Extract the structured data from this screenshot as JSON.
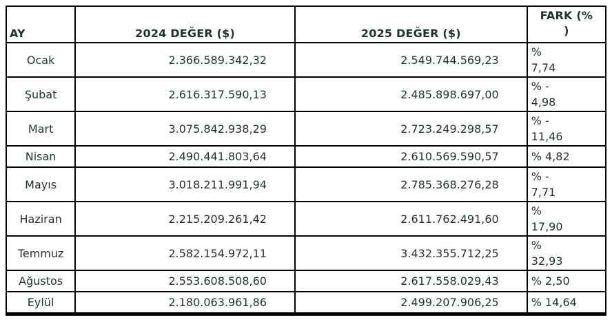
{
  "table": {
    "columns": [
      {
        "label": "AY"
      },
      {
        "label": "2024 DEĞER ($)"
      },
      {
        "label": "2025 DEĞER ($)"
      },
      {
        "label": "FARK (%\n)"
      }
    ],
    "rows": [
      {
        "month": "Ocak",
        "value_2024": "2.366.589.342,32",
        "value_2025": "2.549.744.569,23",
        "fark": "%\n7,74"
      },
      {
        "month": "Şubat",
        "value_2024": "2.616.317.590,13",
        "value_2025": "2.485.898.697,00",
        "fark": "% -\n4,98"
      },
      {
        "month": "Mart",
        "value_2024": "3.075.842.938,29",
        "value_2025": "2.723.249.298,57",
        "fark": "% -\n11,46"
      },
      {
        "month": "Nisan",
        "value_2024": "2.490.441.803,64",
        "value_2025": "2.610.569.590,57",
        "fark": "% 4,82"
      },
      {
        "month": "Mayıs",
        "value_2024": "3.018.211.991,94",
        "value_2025": "2.785.368.276,28",
        "fark": "% -\n7,71"
      },
      {
        "month": "Haziran",
        "value_2024": "2.215.209.261,42",
        "value_2025": "2.611.762.491,60",
        "fark": "%\n17,90"
      },
      {
        "month": "Temmuz",
        "value_2024": "2.582.154.972,11",
        "value_2025": "3.432.355.712,25",
        "fark": "%\n32,93"
      },
      {
        "month": "Ağustos",
        "value_2024": "2.553.608.508,60",
        "value_2025": "2.617.558.029,43",
        "fark": "% 2,50"
      },
      {
        "month": "Eylül",
        "value_2024": "2.180.063.961,86",
        "value_2025": "2.499.207.906,25",
        "fark": "% 14,64"
      }
    ]
  },
  "colors": {
    "border": "#000000",
    "text": "#1f3230",
    "background": "#ffffff"
  }
}
